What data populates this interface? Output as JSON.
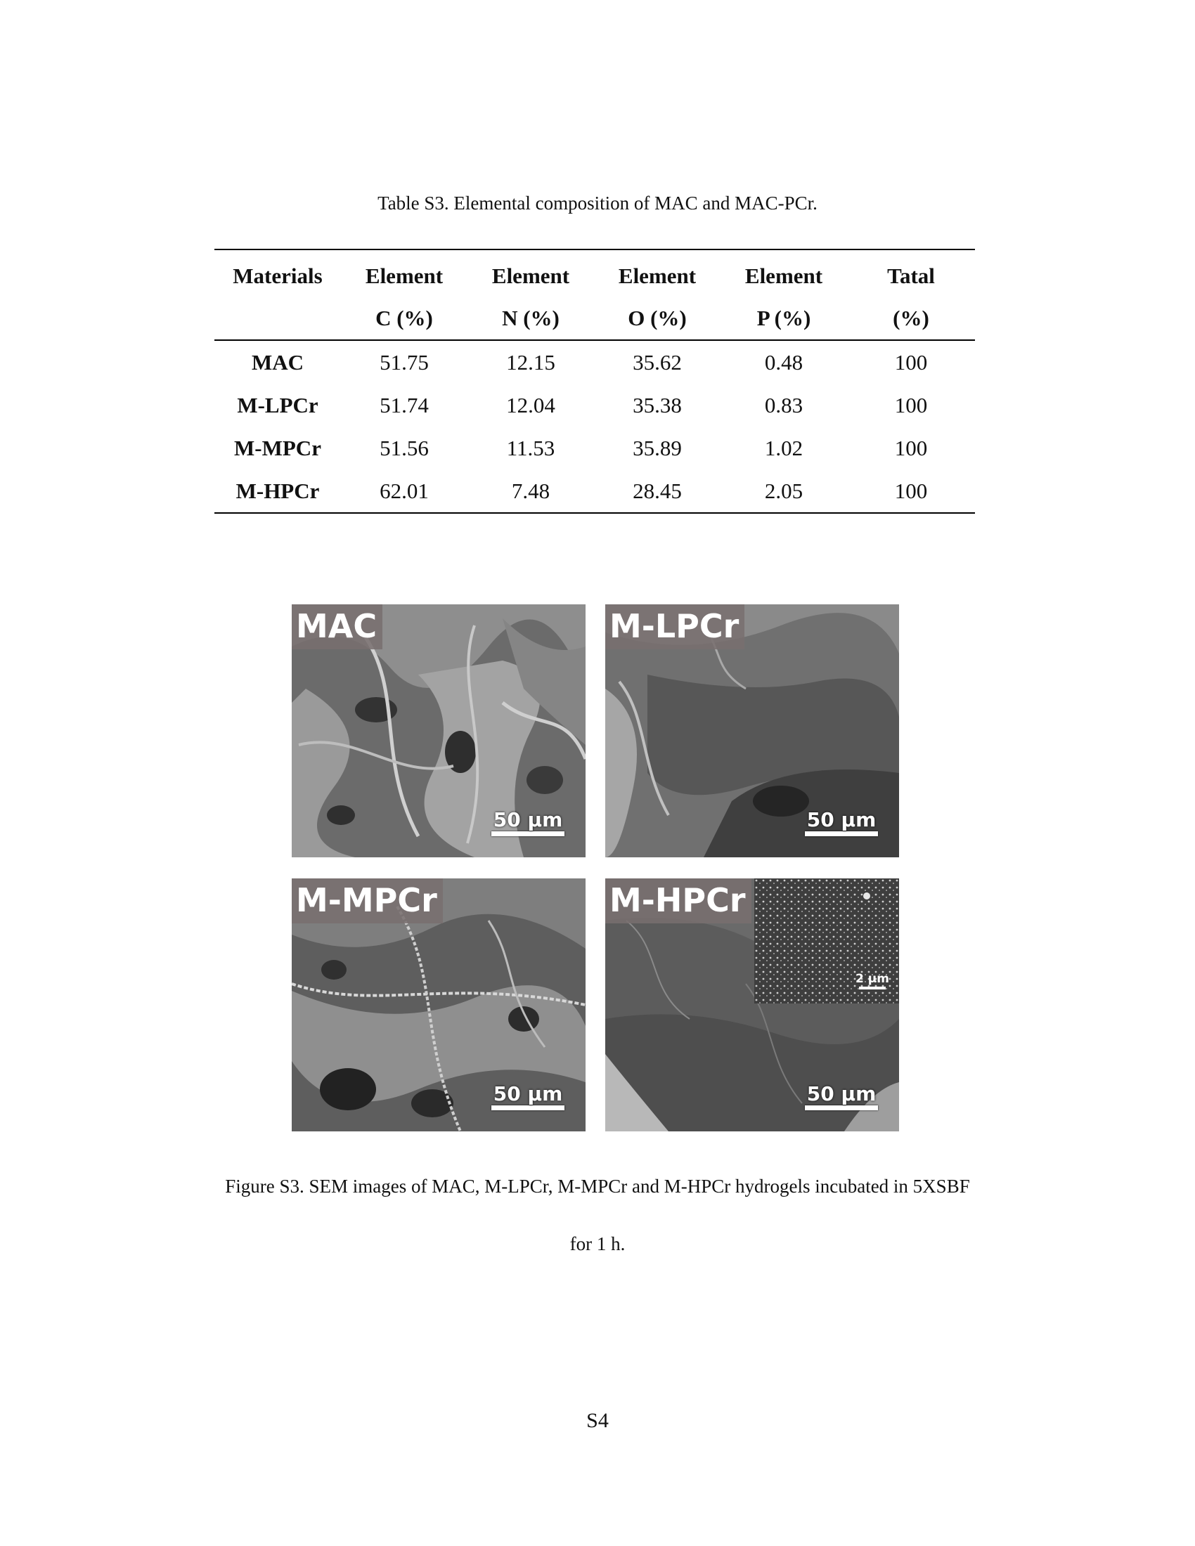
{
  "table": {
    "caption": "Table S3. Elemental composition of MAC and MAC-PCr.",
    "header_row1": [
      "Materials",
      "Element",
      "Element",
      "Element",
      "Element",
      "Tatal"
    ],
    "header_row2": [
      "",
      "C (%)",
      "N (%)",
      "O (%)",
      "P (%)",
      "(%)"
    ],
    "rows": [
      [
        "MAC",
        "51.75",
        "12.15",
        "35.62",
        "0.48",
        "100"
      ],
      [
        "M-LPCr",
        "51.74",
        "12.04",
        "35.38",
        "0.83",
        "100"
      ],
      [
        "M-MPCr",
        "51.56",
        "11.53",
        "35.89",
        "1.02",
        "100"
      ],
      [
        "M-HPCr",
        "62.01",
        "7.48",
        "28.45",
        "2.05",
        "100"
      ]
    ]
  },
  "figure": {
    "panels": [
      {
        "label": "MAC",
        "scale": "50 µm"
      },
      {
        "label": "M-LPCr",
        "scale": "50 µm"
      },
      {
        "label": "M-MPCr",
        "scale": "50 µm"
      },
      {
        "label": "M-HPCr",
        "scale": "50 µm",
        "inset_scale": "2 µm"
      }
    ],
    "caption_line1": "Figure S3. SEM images of MAC, M-LPCr, M-MPCr and M-HPCr hydrogels incubated in 5XSBF",
    "caption_line2": "for 1 h."
  },
  "page_number": "S4"
}
